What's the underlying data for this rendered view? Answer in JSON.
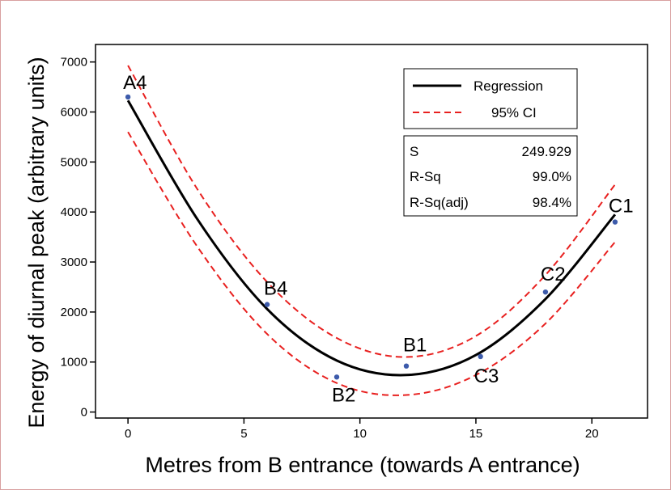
{
  "chart_data": {
    "type": "scatter",
    "xlabel": "Metres from B entrance (towards A entrance)",
    "ylabel": "Energy of diurnal peak (arbitrary units)",
    "xlim": [
      -1.4,
      22.4
    ],
    "ylim": [
      -120,
      7350
    ],
    "xticks": [
      0,
      5,
      10,
      15,
      20
    ],
    "yticks": [
      0,
      1000,
      2000,
      3000,
      4000,
      5000,
      6000,
      7000
    ],
    "grid": false,
    "points": [
      {
        "label": "A4",
        "x": 0,
        "y": 6300
      },
      {
        "label": "B4",
        "x": 6,
        "y": 2150
      },
      {
        "label": "B2",
        "x": 9,
        "y": 700
      },
      {
        "label": "B1",
        "x": 12,
        "y": 920
      },
      {
        "label": "C3",
        "x": 15.2,
        "y": 1110
      },
      {
        "label": "C2",
        "x": 18,
        "y": 2400
      },
      {
        "label": "C1",
        "x": 21,
        "y": 3800
      }
    ],
    "regression": {
      "name": "Regression",
      "x": [
        0,
        3,
        6,
        9,
        12,
        15,
        18,
        21
      ],
      "y": [
        6230,
        3850,
        2060,
        1030,
        740,
        1140,
        2260,
        3950
      ]
    },
    "ci_upper": {
      "name": "95% CI",
      "x": [
        0,
        3,
        6,
        9,
        12,
        15,
        18,
        21
      ],
      "y": [
        6930,
        4450,
        2600,
        1480,
        1100,
        1520,
        2740,
        4550
      ]
    },
    "ci_lower": {
      "x": [
        0,
        3,
        6,
        9,
        12,
        15,
        18,
        21
      ],
      "y": [
        5600,
        3300,
        1560,
        580,
        340,
        740,
        1770,
        3400
      ]
    },
    "legend": {
      "placement": "top-right",
      "entries": [
        "Regression",
        "95% CI"
      ]
    },
    "stats": [
      {
        "label": "S",
        "value": "249.929"
      },
      {
        "label": "R-Sq",
        "value": "99.0%"
      },
      {
        "label": "R-Sq(adj)",
        "value": "98.4%"
      }
    ],
    "colors": {
      "regression": "#000000",
      "ci": "#e8201f",
      "points": "#3d5bab"
    }
  }
}
